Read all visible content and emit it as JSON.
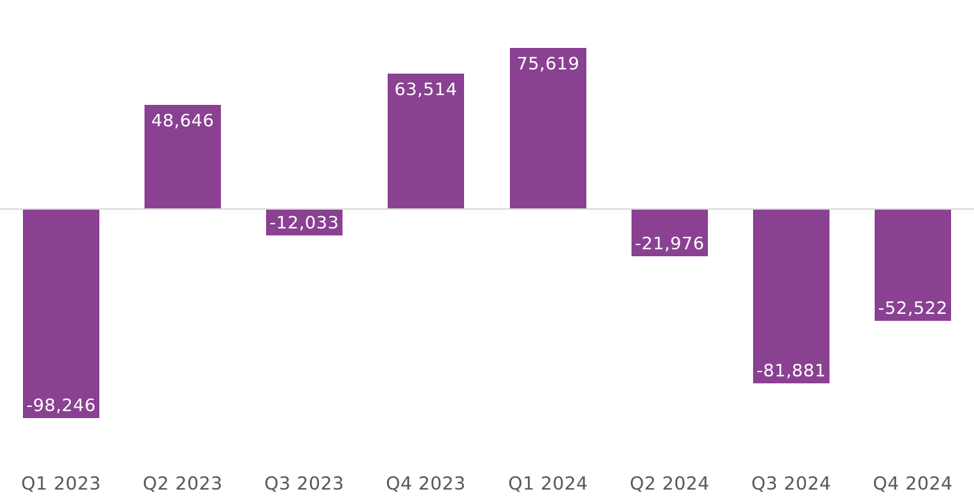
{
  "chart_data": {
    "type": "bar",
    "title": "",
    "xlabel": "",
    "ylabel": "",
    "categories": [
      "Q1 2023",
      "Q2 2023",
      "Q3 2023",
      "Q4 2023",
      "Q1 2024",
      "Q2 2024",
      "Q3 2024",
      "Q4 2024"
    ],
    "values": [
      -98246,
      48646,
      -12033,
      63514,
      75619,
      -21976,
      -81881,
      -52522
    ],
    "data_labels": [
      "-98,246",
      "48,646",
      "-12,033",
      "63,514",
      "75,619",
      "-21,976",
      "-81,881",
      "-52,522"
    ],
    "ylim": [
      -110000,
      90000
    ],
    "grid": false,
    "legend_position": "none",
    "y_axis_visible": false,
    "data_label_position": "inside-end",
    "colors": {
      "bar": "#8a4192",
      "data_label_text": "#ffffff",
      "axis_label_text": "#58585a",
      "zero_line": "#d9d9d9",
      "background": "#ffffff"
    }
  }
}
